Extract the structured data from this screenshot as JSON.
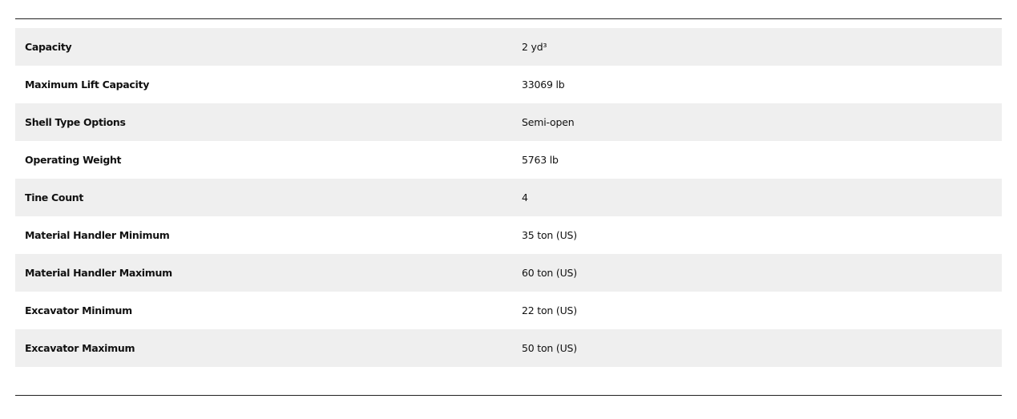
{
  "specs": [
    {
      "label": "Capacity",
      "value": "2 yd³"
    },
    {
      "label": "Maximum Lift Capacity",
      "value": "33069 lb"
    },
    {
      "label": "Shell Type Options",
      "value": "Semi-open"
    },
    {
      "label": "Operating Weight",
      "value": "5763 lb"
    },
    {
      "label": "Tine Count",
      "value": "4"
    },
    {
      "label": "Material Handler Minimum",
      "value": "35 ton (US)"
    },
    {
      "label": "Material Handler Maximum",
      "value": "60 ton (US)"
    },
    {
      "label": "Excavator Minimum",
      "value": "22 ton (US)"
    },
    {
      "label": "Excavator Maximum",
      "value": "50 ton (US)"
    }
  ]
}
